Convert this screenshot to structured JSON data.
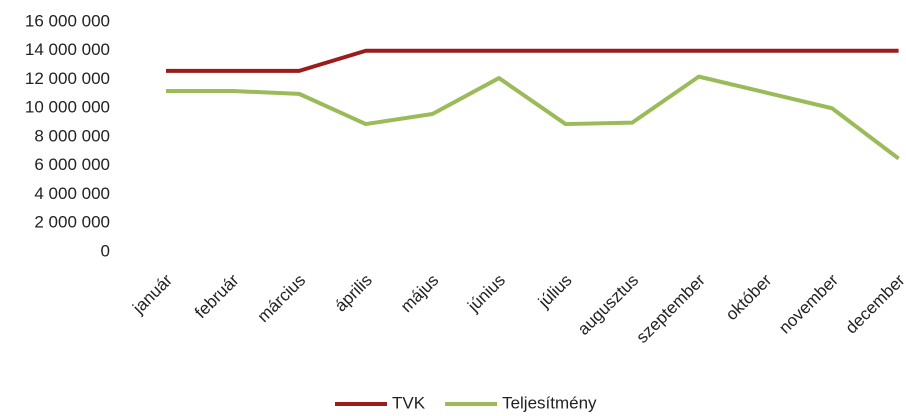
{
  "chart_data": {
    "type": "line",
    "categories": [
      "január",
      "február",
      "március",
      "április",
      "május",
      "június",
      "július",
      "augusztus",
      "szeptember",
      "október",
      "november",
      "december"
    ],
    "series": [
      {
        "name": "TVK",
        "color": "#9b1c1c",
        "values": [
          12600000,
          12600000,
          12600000,
          14000000,
          14000000,
          14000000,
          14000000,
          14000000,
          14000000,
          14000000,
          14000000,
          14000000
        ]
      },
      {
        "name": "Teljesítmény",
        "color": "#9bbb59",
        "values": [
          11200000,
          11200000,
          11000000,
          8900000,
          9600000,
          12100000,
          8900000,
          9000000,
          12200000,
          11100000,
          10000000,
          6500000
        ]
      }
    ],
    "ylim": [
      0,
      16000000
    ],
    "yticks": [
      0,
      {
        "value": 2000000,
        "label": "2 000 000"
      },
      {
        "value": 4000000,
        "label": "4 000 000"
      },
      {
        "value": 6000000,
        "label": "6 000 000"
      },
      {
        "value": 8000000,
        "label": "8 000 000"
      },
      {
        "value": 10000000,
        "label": "10 000 000"
      },
      {
        "value": 12000000,
        "label": "12 000 000"
      },
      {
        "value": 14000000,
        "label": "14 000 000"
      },
      {
        "value": 16000000,
        "label": "16 000 000"
      }
    ],
    "grid": false,
    "legend": "bottom"
  }
}
